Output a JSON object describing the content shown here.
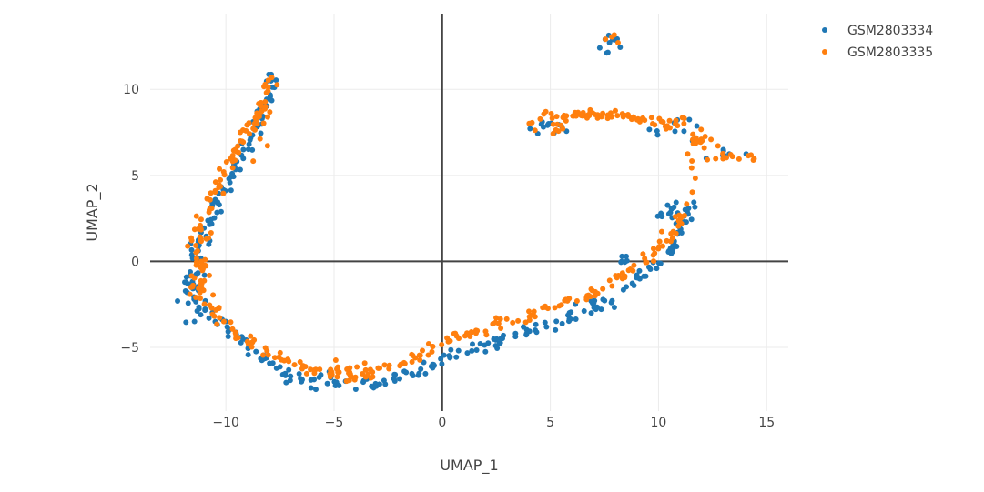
{
  "chart_data": {
    "type": "scatter",
    "xlabel": "UMAP_1",
    "ylabel": "UMAP_2",
    "xlim": [
      -13.5,
      16
    ],
    "ylim": [
      -8.7,
      14.4
    ],
    "xticks": [
      -10,
      -5,
      0,
      5,
      10,
      15
    ],
    "yticks": [
      -5,
      0,
      5,
      10
    ],
    "xtick_labels": [
      "−10",
      "−5",
      "0",
      "5",
      "10",
      "15"
    ],
    "ytick_labels": [
      "−5",
      "0",
      "5",
      "10"
    ],
    "grid": true,
    "zero_lines": true,
    "legend_position": "top-right",
    "series": [
      {
        "name": "GSM2803334",
        "color": "#1f77b4",
        "path": [
          [
            -8,
            11
          ],
          [
            -7.9,
            10.2
          ],
          [
            -8.1,
            9.4
          ],
          [
            -8.3,
            8.5
          ],
          [
            -8.6,
            7.5
          ],
          [
            -9.1,
            6.5
          ],
          [
            -9.6,
            5.3
          ],
          [
            -10.1,
            4.2
          ],
          [
            -10.6,
            3
          ],
          [
            -11,
            1.8
          ],
          [
            -11.3,
            0.8
          ],
          [
            -11.5,
            -0.3
          ],
          [
            -11.6,
            -1.2
          ],
          [
            -11.3,
            -2.3
          ],
          [
            -10.7,
            -3.3
          ],
          [
            -9.9,
            -4
          ],
          [
            -9,
            -4.9
          ],
          [
            -8,
            -5.8
          ],
          [
            -7,
            -6.6
          ],
          [
            -5.8,
            -7
          ],
          [
            -4.5,
            -7.2
          ],
          [
            -3.2,
            -7.1
          ],
          [
            -2,
            -6.9
          ],
          [
            -1,
            -6.5
          ],
          [
            0,
            -5.8
          ],
          [
            1,
            -5.3
          ],
          [
            2.3,
            -4.8
          ],
          [
            3.5,
            -4.3
          ],
          [
            4.8,
            -3.7
          ],
          [
            6,
            -3.1
          ],
          [
            7.2,
            -2.5
          ],
          [
            8.2,
            -1.7
          ],
          [
            9.2,
            -0.9
          ],
          [
            10.1,
            0
          ],
          [
            10.8,
            1.2
          ],
          [
            11.3,
            2.5
          ],
          [
            11.6,
            3.6
          ]
        ],
        "clusters": [
          {
            "x": 7.7,
            "y": 12.5,
            "spread_x": 0.25,
            "spread_y": 0.4,
            "count": 10
          },
          {
            "x": 10.3,
            "y": 2.8,
            "spread_x": 0.4,
            "spread_y": 0.4,
            "count": 12
          },
          {
            "x": 4.8,
            "y": 7.8,
            "spread_x": 0.5,
            "spread_y": 0.25,
            "count": 12
          },
          {
            "x": 10.5,
            "y": 7.8,
            "spread_x": 0.6,
            "spread_y": 0.3,
            "count": 10
          },
          {
            "x": 13.2,
            "y": 6.2,
            "spread_x": 0.6,
            "spread_y": 0.2,
            "count": 8
          },
          {
            "x": 8,
            "y": 0.1,
            "spread_x": 0.4,
            "spread_y": 0.2,
            "count": 6
          },
          {
            "x": -11.6,
            "y": -1.5,
            "spread_x": 0.25,
            "spread_y": 0.9,
            "count": 14
          }
        ]
      },
      {
        "name": "GSM2803335",
        "color": "#ff7f0e",
        "path": [
          [
            -7.9,
            11
          ],
          [
            -8.1,
            10
          ],
          [
            -8.3,
            9
          ],
          [
            -8.7,
            8.1
          ],
          [
            -9.2,
            7
          ],
          [
            -9.7,
            6
          ],
          [
            -10.2,
            4.9
          ],
          [
            -10.7,
            3.7
          ],
          [
            -11,
            2.6
          ],
          [
            -11.3,
            1.4
          ],
          [
            -11.2,
            0.3
          ],
          [
            -11.3,
            -0.8
          ],
          [
            -11.1,
            -2
          ],
          [
            -10.7,
            -2.9
          ],
          [
            -10.1,
            -3.6
          ],
          [
            -9.4,
            -4.3
          ],
          [
            -8.4,
            -5.1
          ],
          [
            -7.2,
            -5.8
          ],
          [
            -6,
            -6.4
          ],
          [
            -4.8,
            -6.6
          ],
          [
            -3.5,
            -6.4
          ],
          [
            -2.3,
            -6
          ],
          [
            -1.2,
            -5.6
          ],
          [
            -0.3,
            -5
          ],
          [
            0.8,
            -4.3
          ],
          [
            2,
            -3.9
          ],
          [
            3.3,
            -3.4
          ],
          [
            4.5,
            -2.9
          ],
          [
            5.8,
            -2.3
          ],
          [
            7,
            -1.8
          ],
          [
            8.2,
            -1
          ],
          [
            9.1,
            -0.3
          ],
          [
            9.9,
            0.6
          ],
          [
            10.6,
            1.6
          ],
          [
            11.1,
            2.5
          ],
          [
            11.4,
            3.2
          ]
        ],
        "clusters": [
          {
            "x": 4.8,
            "y": 7.9,
            "spread_x": 0.4,
            "spread_y": 0.3,
            "count": 12
          },
          {
            "x": 6,
            "y": 8.5,
            "spread_x": 0.6,
            "spread_y": 0.15,
            "count": 22
          },
          {
            "x": 7.5,
            "y": 8.5,
            "spread_x": 0.6,
            "spread_y": 0.12,
            "count": 16
          },
          {
            "x": 9,
            "y": 8.3,
            "spread_x": 0.6,
            "spread_y": 0.12,
            "count": 16
          },
          {
            "x": 10.6,
            "y": 7.9,
            "spread_x": 0.6,
            "spread_y": 0.25,
            "count": 16
          },
          {
            "x": 12.1,
            "y": 7,
            "spread_x": 0.6,
            "spread_y": 0.25,
            "count": 14
          },
          {
            "x": 13.6,
            "y": 6.1,
            "spread_x": 0.6,
            "spread_y": 0.15,
            "count": 12
          },
          {
            "x": 11.5,
            "y": 5.6,
            "spread_x": 0.12,
            "spread_y": 0.6,
            "count": 6
          },
          {
            "x": 7.7,
            "y": 12.9,
            "spread_x": 0.2,
            "spread_y": 0.2,
            "count": 4
          },
          {
            "x": -8.5,
            "y": 7.6,
            "spread_x": 0.4,
            "spread_y": 0.8,
            "count": 12
          },
          {
            "x": -11.2,
            "y": -0.2,
            "spread_x": 0.3,
            "spread_y": 0.9,
            "count": 14
          },
          {
            "x": -4.5,
            "y": -6.4,
            "spread_x": 0.6,
            "spread_y": 0.3,
            "count": 16
          }
        ]
      }
    ]
  }
}
